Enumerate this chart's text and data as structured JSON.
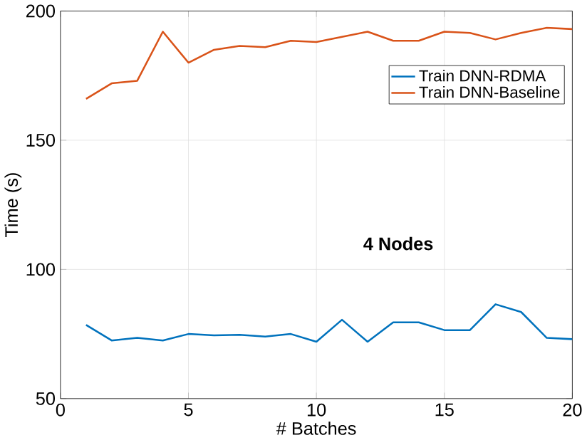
{
  "chart_data": {
    "type": "line",
    "xlabel": "# Batches",
    "ylabel": "Time (s)",
    "x": [
      1,
      2,
      3,
      4,
      5,
      6,
      7,
      8,
      9,
      10,
      11,
      12,
      13,
      14,
      15,
      16,
      17,
      18,
      19,
      20
    ],
    "series": [
      {
        "name": "Train DNN-RDMA",
        "color": "#0072bd",
        "values": [
          78.5,
          72.5,
          73.5,
          72.5,
          75,
          74.5,
          74.7,
          74,
          75,
          72,
          80.5,
          72,
          79.5,
          79.5,
          76.5,
          76.5,
          86.5,
          83.5,
          73.5,
          73
        ]
      },
      {
        "name": "Train DNN-Baseline",
        "color": "#d95319",
        "values": [
          166,
          172,
          173,
          192,
          180,
          185,
          186.5,
          186,
          188.5,
          188,
          190,
          192,
          188.5,
          188.5,
          192,
          191.5,
          189,
          191.5,
          193.5,
          193
        ]
      }
    ],
    "xlim": [
      0,
      20
    ],
    "ylim": [
      50,
      200
    ],
    "xticks": [
      0,
      5,
      10,
      15,
      20
    ],
    "yticks": [
      50,
      100,
      150,
      200
    ],
    "grid": true,
    "legend": "top right",
    "marker": "none",
    "line_style": "solid",
    "annotations": [
      "**4 Nodes**"
    ]
  }
}
